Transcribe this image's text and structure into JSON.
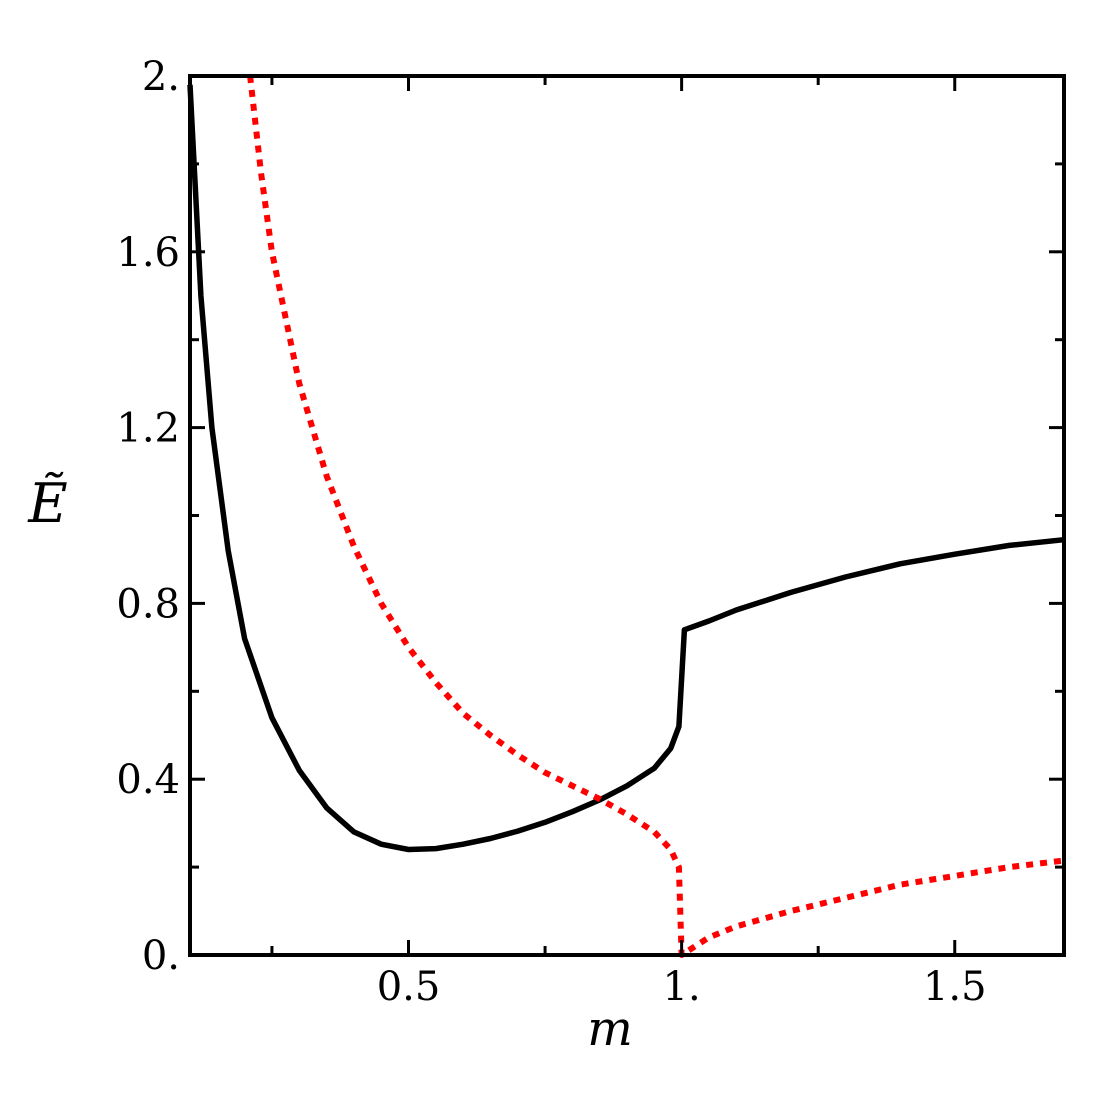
{
  "chart_data": {
    "type": "line",
    "xlabel": "m",
    "ylabel": "Ẽ",
    "xlim": [
      0.1,
      1.7
    ],
    "ylim": [
      0,
      2
    ],
    "x_ticks": [
      {
        "value": 0.5,
        "label": "0.5"
      },
      {
        "value": 1.0,
        "label": "1."
      },
      {
        "value": 1.5,
        "label": "1.5"
      }
    ],
    "x_minor_ticks": [
      0.25,
      0.75,
      1.25
    ],
    "y_ticks": [
      {
        "value": 0,
        "label": "0."
      },
      {
        "value": 0.4,
        "label": "0.4"
      },
      {
        "value": 0.8,
        "label": "0.8"
      },
      {
        "value": 1.2,
        "label": "1.2"
      },
      {
        "value": 1.6,
        "label": "1.6"
      },
      {
        "value": 2.0,
        "label": "2."
      }
    ],
    "y_minor_ticks": [
      0.2,
      0.6,
      1.0,
      1.4,
      1.8
    ],
    "grid": false,
    "series": [
      {
        "style": "solid",
        "color": "#000000",
        "points": [
          [
            0.1,
            1.98
          ],
          [
            0.12,
            1.5
          ],
          [
            0.14,
            1.2
          ],
          [
            0.17,
            0.92
          ],
          [
            0.2,
            0.72
          ],
          [
            0.25,
            0.54
          ],
          [
            0.3,
            0.42
          ],
          [
            0.35,
            0.335
          ],
          [
            0.4,
            0.28
          ],
          [
            0.45,
            0.252
          ],
          [
            0.5,
            0.24
          ],
          [
            0.55,
            0.242
          ],
          [
            0.6,
            0.252
          ],
          [
            0.65,
            0.265
          ],
          [
            0.7,
            0.282
          ],
          [
            0.75,
            0.302
          ],
          [
            0.8,
            0.326
          ],
          [
            0.85,
            0.353
          ],
          [
            0.9,
            0.385
          ],
          [
            0.95,
            0.425
          ],
          [
            0.98,
            0.47
          ],
          [
            0.995,
            0.52
          ],
          [
            1.005,
            0.74
          ],
          [
            1.05,
            0.76
          ],
          [
            1.1,
            0.785
          ],
          [
            1.2,
            0.825
          ],
          [
            1.3,
            0.86
          ],
          [
            1.4,
            0.89
          ],
          [
            1.5,
            0.912
          ],
          [
            1.6,
            0.932
          ],
          [
            1.7,
            0.945
          ]
        ]
      },
      {
        "style": "dotted",
        "color": "#ff0000",
        "points": [
          [
            0.21,
            2.0
          ],
          [
            0.23,
            1.78
          ],
          [
            0.25,
            1.6
          ],
          [
            0.3,
            1.3
          ],
          [
            0.35,
            1.09
          ],
          [
            0.4,
            0.93
          ],
          [
            0.45,
            0.8
          ],
          [
            0.5,
            0.7
          ],
          [
            0.55,
            0.62
          ],
          [
            0.6,
            0.55
          ],
          [
            0.65,
            0.5
          ],
          [
            0.7,
            0.455
          ],
          [
            0.75,
            0.415
          ],
          [
            0.8,
            0.385
          ],
          [
            0.85,
            0.355
          ],
          [
            0.9,
            0.32
          ],
          [
            0.95,
            0.28
          ],
          [
            0.98,
            0.24
          ],
          [
            0.995,
            0.2
          ],
          [
            1.0,
            0.0
          ],
          [
            1.05,
            0.04
          ],
          [
            1.1,
            0.065
          ],
          [
            1.2,
            0.1
          ],
          [
            1.3,
            0.13
          ],
          [
            1.4,
            0.16
          ],
          [
            1.5,
            0.18
          ],
          [
            1.6,
            0.2
          ],
          [
            1.7,
            0.215
          ]
        ]
      }
    ]
  }
}
